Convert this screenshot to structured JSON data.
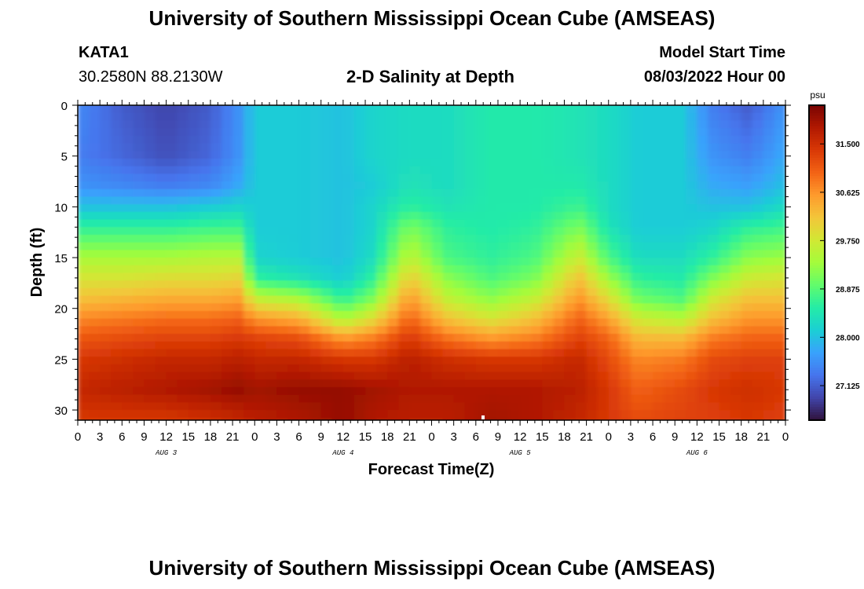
{
  "header": {
    "title": "University of Southern Mississippi Ocean Cube (AMSEAS)",
    "station": "KATA1",
    "coordinates": "30.2580N  88.2130W",
    "model_start_label": "Model Start Time",
    "model_start_value": "08/03/2022 Hour 00"
  },
  "footer": {
    "title": "University of Southern Mississippi Ocean Cube (AMSEAS)"
  },
  "chart_data": {
    "type": "heatmap",
    "title": "2-D Salinity at Depth",
    "xlabel": "Forecast Time(Z)",
    "ylabel": "Depth (ft)",
    "x_range_hours": [
      0,
      96
    ],
    "x_tick_labels": [
      "0",
      "3",
      "6",
      "9",
      "12",
      "15",
      "18",
      "21",
      "0",
      "3",
      "6",
      "9",
      "12",
      "15",
      "18",
      "21",
      "0",
      "3",
      "6",
      "9",
      "12",
      "15",
      "18",
      "21",
      "0",
      "3",
      "6",
      "9",
      "12",
      "15",
      "18",
      "21",
      "0"
    ],
    "date_labels": [
      {
        "label": "AUG 3",
        "hour": 12
      },
      {
        "label": "AUG 4",
        "hour": 36
      },
      {
        "label": "AUG 5",
        "hour": 60
      },
      {
        "label": "AUG 6",
        "hour": 84
      }
    ],
    "y_range_ft": [
      0,
      31
    ],
    "y_ticks": [
      0,
      5,
      10,
      15,
      20,
      25,
      30
    ],
    "colorbar": {
      "unit": "psu",
      "range": [
        26.5,
        32.2
      ],
      "tick_values": [
        31.5,
        30.625,
        29.75,
        28.875,
        28.0,
        27.125
      ],
      "tick_labels": [
        "31.500",
        "30.625",
        "29.750",
        "28.875",
        "28.000",
        "27.125"
      ],
      "colors": [
        "#30123b",
        "#4145ab",
        "#4675ed",
        "#39a2fc",
        "#1bcfd4",
        "#24eca6",
        "#61fc6c",
        "#a4fc3b",
        "#d1e834",
        "#f3c63a",
        "#fe9b2d",
        "#f36315",
        "#d93806",
        "#b11901",
        "#7a0403"
      ]
    },
    "depth_profile_ft": [
      0,
      5,
      8,
      10,
      12,
      15,
      17,
      19,
      21,
      23,
      25,
      28,
      31
    ],
    "series": [
      {
        "hour": 0,
        "salinity": [
          27.5,
          27.4,
          27.6,
          28.0,
          28.6,
          29.4,
          29.8,
          30.2,
          30.7,
          31.1,
          31.4,
          31.6,
          31.4
        ]
      },
      {
        "hour": 6,
        "salinity": [
          27.1,
          27.2,
          27.5,
          28.0,
          28.6,
          29.4,
          29.8,
          30.3,
          30.8,
          31.2,
          31.5,
          31.7,
          31.4
        ]
      },
      {
        "hour": 12,
        "salinity": [
          26.9,
          27.0,
          27.4,
          28.0,
          28.6,
          29.4,
          29.9,
          30.4,
          30.9,
          31.3,
          31.6,
          31.8,
          31.4
        ]
      },
      {
        "hour": 18,
        "salinity": [
          27.1,
          27.2,
          27.5,
          28.1,
          28.7,
          29.5,
          29.9,
          30.4,
          30.9,
          31.3,
          31.6,
          31.9,
          31.5
        ]
      },
      {
        "hour": 22,
        "salinity": [
          27.6,
          27.6,
          27.8,
          28.2,
          28.7,
          29.5,
          30.0,
          30.5,
          31.0,
          31.4,
          31.7,
          32.0,
          31.6
        ]
      },
      {
        "hour": 24,
        "salinity": [
          28.1,
          28.1,
          28.1,
          28.1,
          28.1,
          28.2,
          28.6,
          29.6,
          30.6,
          31.3,
          31.6,
          31.9,
          31.7
        ]
      },
      {
        "hour": 30,
        "salinity": [
          28.1,
          28.1,
          28.1,
          28.1,
          28.1,
          28.1,
          28.4,
          29.4,
          30.4,
          31.2,
          31.6,
          32.0,
          31.8
        ]
      },
      {
        "hour": 36,
        "salinity": [
          28.0,
          28.0,
          28.0,
          28.0,
          28.0,
          28.0,
          28.1,
          28.6,
          29.4,
          30.6,
          31.4,
          32.0,
          32.0
        ]
      },
      {
        "hour": 40,
        "salinity": [
          28.2,
          28.2,
          28.1,
          28.2,
          28.2,
          28.3,
          28.6,
          29.1,
          29.9,
          30.8,
          31.4,
          31.9,
          31.8
        ]
      },
      {
        "hour": 45,
        "salinity": [
          28.3,
          28.3,
          28.4,
          28.6,
          29.1,
          29.6,
          30.1,
          30.6,
          31.0,
          31.4,
          31.7,
          31.8,
          31.7
        ]
      },
      {
        "hour": 50,
        "salinity": [
          28.3,
          28.3,
          28.3,
          28.4,
          28.6,
          28.8,
          29.2,
          29.6,
          30.2,
          30.9,
          31.5,
          31.8,
          31.7
        ]
      },
      {
        "hour": 56,
        "salinity": [
          28.5,
          28.5,
          28.5,
          28.5,
          28.5,
          28.6,
          28.8,
          29.2,
          29.8,
          30.6,
          31.4,
          31.8,
          31.9
        ]
      },
      {
        "hour": 62,
        "salinity": [
          28.5,
          28.5,
          28.5,
          28.5,
          28.6,
          28.8,
          29.1,
          29.6,
          30.2,
          30.8,
          31.4,
          31.8,
          31.8
        ]
      },
      {
        "hour": 68,
        "salinity": [
          28.4,
          28.4,
          28.5,
          28.7,
          29.1,
          29.7,
          30.2,
          30.6,
          31.0,
          31.3,
          31.6,
          31.7,
          31.6
        ]
      },
      {
        "hour": 72,
        "salinity": [
          28.3,
          28.3,
          28.3,
          28.3,
          28.4,
          28.8,
          29.3,
          29.9,
          30.5,
          31.0,
          31.2,
          31.4,
          31.4
        ]
      },
      {
        "hour": 76,
        "salinity": [
          28.1,
          28.1,
          28.1,
          28.1,
          28.1,
          28.3,
          28.6,
          29.0,
          29.7,
          30.3,
          30.7,
          31.0,
          31.2
        ]
      },
      {
        "hour": 82,
        "salinity": [
          28.1,
          28.1,
          28.1,
          28.1,
          28.1,
          28.3,
          28.5,
          28.8,
          29.5,
          30.3,
          30.8,
          31.2,
          31.3
        ]
      },
      {
        "hour": 86,
        "salinity": [
          27.4,
          27.6,
          27.8,
          28.0,
          28.2,
          28.6,
          29.1,
          29.7,
          30.2,
          30.8,
          31.2,
          31.4,
          31.3
        ]
      },
      {
        "hour": 91,
        "salinity": [
          27.1,
          27.4,
          27.7,
          28.0,
          28.6,
          29.2,
          29.7,
          30.2,
          30.6,
          31.0,
          31.3,
          31.5,
          31.4
        ]
      },
      {
        "hour": 96,
        "salinity": [
          27.6,
          27.8,
          28.0,
          28.3,
          28.7,
          29.3,
          29.8,
          30.2,
          30.6,
          31.0,
          31.3,
          31.4,
          31.3
        ]
      }
    ]
  }
}
